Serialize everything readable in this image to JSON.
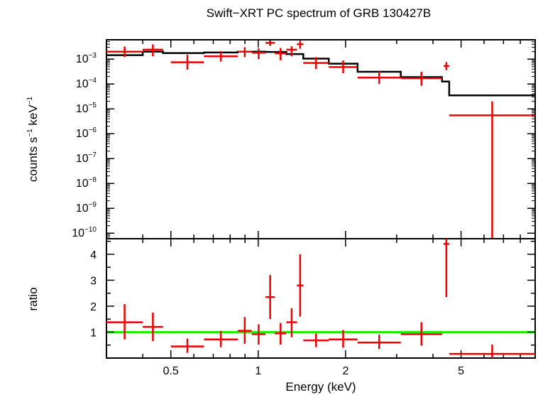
{
  "chart_data": {
    "type": "scatter",
    "title": "Swift−XRT PC spectrum of GRB 130427B",
    "xlabel": "Energy (keV)",
    "x_scale": "log",
    "xlim": [
      0.3,
      9.0
    ],
    "x_ticks": [
      {
        "value": 0.5,
        "label": "0.5"
      },
      {
        "value": 1,
        "label": "1"
      },
      {
        "value": 2,
        "label": "2"
      },
      {
        "value": 5,
        "label": "5"
      }
    ],
    "panels": [
      {
        "name": "spectrum",
        "ylabel_parts": {
          "a": "counts s",
          "a_sup": "−1",
          "b": " keV",
          "b_sup": "−1"
        },
        "y_scale": "log",
        "ylim": [
          6e-11,
          0.006
        ],
        "y_ticks": [
          {
            "value": 0.001,
            "base": "10",
            "exp": "−3"
          },
          {
            "value": 0.0001,
            "base": "10",
            "exp": "−4"
          },
          {
            "value": 1e-05,
            "base": "10",
            "exp": "−5"
          },
          {
            "value": 1e-06,
            "base": "10",
            "exp": "−6"
          },
          {
            "value": 1e-07,
            "base": "10",
            "exp": "−7"
          },
          {
            "value": 1e-08,
            "base": "10",
            "exp": "−8"
          },
          {
            "value": 1e-09,
            "base": "10",
            "exp": "−9"
          },
          {
            "value": 1e-10,
            "base": "10",
            "exp": "−10"
          }
        ],
        "data": [
          {
            "xlo": 0.3,
            "xhi": 0.4,
            "y": 0.002,
            "ylo": 0.0012,
            "yhi": 0.0032
          },
          {
            "xlo": 0.4,
            "xhi": 0.47,
            "y": 0.0024,
            "ylo": 0.0013,
            "yhi": 0.0039
          },
          {
            "xlo": 0.5,
            "xhi": 0.65,
            "y": 0.00075,
            "ylo": 0.00038,
            "yhi": 0.0015
          },
          {
            "xlo": 0.65,
            "xhi": 0.85,
            "y": 0.0013,
            "ylo": 0.0008,
            "yhi": 0.0021
          },
          {
            "xlo": 0.85,
            "xhi": 0.95,
            "y": 0.002,
            "ylo": 0.0012,
            "yhi": 0.003
          },
          {
            "xlo": 0.95,
            "xhi": 1.06,
            "y": 0.0018,
            "ylo": 0.001,
            "yhi": 0.0027
          },
          {
            "xlo": 1.06,
            "xhi": 1.14,
            "y": 0.0045,
            "ylo": 0.0034,
            "yhi": 0.0056
          },
          {
            "xlo": 1.14,
            "xhi": 1.25,
            "y": 0.0017,
            "ylo": 0.0009,
            "yhi": 0.0028
          },
          {
            "xlo": 1.25,
            "xhi": 1.36,
            "y": 0.0024,
            "ylo": 0.0013,
            "yhi": 0.0033
          },
          {
            "xlo": 1.36,
            "xhi": 1.43,
            "y": 0.004,
            "ylo": 0.0026,
            "yhi": 0.0055
          },
          {
            "xlo": 1.43,
            "xhi": 1.75,
            "y": 0.0007,
            "ylo": 0.0004,
            "yhi": 0.0012
          },
          {
            "xlo": 1.75,
            "xhi": 2.2,
            "y": 0.00048,
            "ylo": 0.00027,
            "yhi": 0.00088
          },
          {
            "xlo": 2.2,
            "xhi": 3.1,
            "y": 0.00018,
            "ylo": 0.0001,
            "yhi": 0.00032
          },
          {
            "xlo": 3.1,
            "xhi": 4.3,
            "y": 0.00017,
            "ylo": 8.5e-05,
            "yhi": 0.00031
          },
          {
            "xlo": 4.35,
            "xhi": 4.55,
            "y": 0.00053,
            "ylo": 0.00036,
            "yhi": 0.00076
          },
          {
            "xlo": 4.55,
            "xhi": 9.0,
            "y": 5.5e-06,
            "ylo": 6e-11,
            "yhi": 2e-05
          }
        ],
        "model": {
          "name": "model",
          "steps": [
            {
              "xlo": 0.3,
              "xhi": 0.4,
              "y": 0.00145
            },
            {
              "xlo": 0.4,
              "xhi": 0.47,
              "y": 0.002
            },
            {
              "xlo": 0.47,
              "xhi": 0.65,
              "y": 0.00175
            },
            {
              "xlo": 0.65,
              "xhi": 0.85,
              "y": 0.00185
            },
            {
              "xlo": 0.85,
              "xhi": 1.06,
              "y": 0.002
            },
            {
              "xlo": 1.06,
              "xhi": 1.25,
              "y": 0.00195
            },
            {
              "xlo": 1.25,
              "xhi": 1.43,
              "y": 0.0016
            },
            {
              "xlo": 1.43,
              "xhi": 1.75,
              "y": 0.00105
            },
            {
              "xlo": 1.75,
              "xhi": 2.2,
              "y": 0.00066
            },
            {
              "xlo": 2.2,
              "xhi": 3.1,
              "y": 0.00031
            },
            {
              "xlo": 3.1,
              "xhi": 4.3,
              "y": 0.00019
            },
            {
              "xlo": 4.3,
              "xhi": 4.55,
              "y": 0.000125
            },
            {
              "xlo": 4.55,
              "xhi": 9.0,
              "y": 3.5e-05
            }
          ]
        }
      },
      {
        "name": "ratio",
        "ylabel": "ratio",
        "y_scale": "linear",
        "ylim": [
          0.0,
          4.6
        ],
        "y_ticks": [
          {
            "value": 1,
            "label": "1"
          },
          {
            "value": 2,
            "label": "2"
          },
          {
            "value": 3,
            "label": "3"
          },
          {
            "value": 4,
            "label": "4"
          }
        ],
        "reference_line": {
          "y": 1.0
        },
        "data": [
          {
            "xlo": 0.3,
            "xhi": 0.4,
            "y": 1.38,
            "ylo": 0.72,
            "yhi": 2.08
          },
          {
            "xlo": 0.4,
            "xhi": 0.47,
            "y": 1.2,
            "ylo": 0.65,
            "yhi": 1.75
          },
          {
            "xlo": 0.5,
            "xhi": 0.65,
            "y": 0.45,
            "ylo": 0.2,
            "yhi": 0.75
          },
          {
            "xlo": 0.65,
            "xhi": 0.85,
            "y": 0.72,
            "ylo": 0.42,
            "yhi": 1.05
          },
          {
            "xlo": 0.85,
            "xhi": 0.95,
            "y": 1.05,
            "ylo": 0.55,
            "yhi": 1.58
          },
          {
            "xlo": 0.95,
            "xhi": 1.06,
            "y": 0.92,
            "ylo": 0.52,
            "yhi": 1.3
          },
          {
            "xlo": 1.06,
            "xhi": 1.14,
            "y": 2.35,
            "ylo": 1.5,
            "yhi": 3.2
          },
          {
            "xlo": 1.14,
            "xhi": 1.25,
            "y": 0.95,
            "ylo": 0.52,
            "yhi": 1.35
          },
          {
            "xlo": 1.25,
            "xhi": 1.36,
            "y": 1.38,
            "ylo": 0.8,
            "yhi": 1.92
          },
          {
            "xlo": 1.36,
            "xhi": 1.43,
            "y": 2.8,
            "ylo": 1.6,
            "yhi": 4.0
          },
          {
            "xlo": 1.43,
            "xhi": 1.75,
            "y": 0.68,
            "ylo": 0.42,
            "yhi": 0.95
          },
          {
            "xlo": 1.75,
            "xhi": 2.2,
            "y": 0.72,
            "ylo": 0.4,
            "yhi": 1.08
          },
          {
            "xlo": 2.2,
            "xhi": 3.1,
            "y": 0.6,
            "ylo": 0.35,
            "yhi": 0.9
          },
          {
            "xlo": 3.1,
            "xhi": 4.3,
            "y": 0.92,
            "ylo": 0.48,
            "yhi": 1.38
          },
          {
            "xlo": 4.35,
            "xhi": 4.55,
            "y": 4.4,
            "ylo": 2.35,
            "yhi": 4.6
          },
          {
            "xlo": 4.55,
            "xhi": 9.0,
            "y": 0.16,
            "ylo": 0.0,
            "yhi": 0.52
          }
        ]
      }
    ],
    "colors": {
      "data": "#ee0000",
      "model": "#000000",
      "reference_line": "#22ee00",
      "axes": "#000000"
    },
    "grid": false,
    "legend": "none"
  }
}
